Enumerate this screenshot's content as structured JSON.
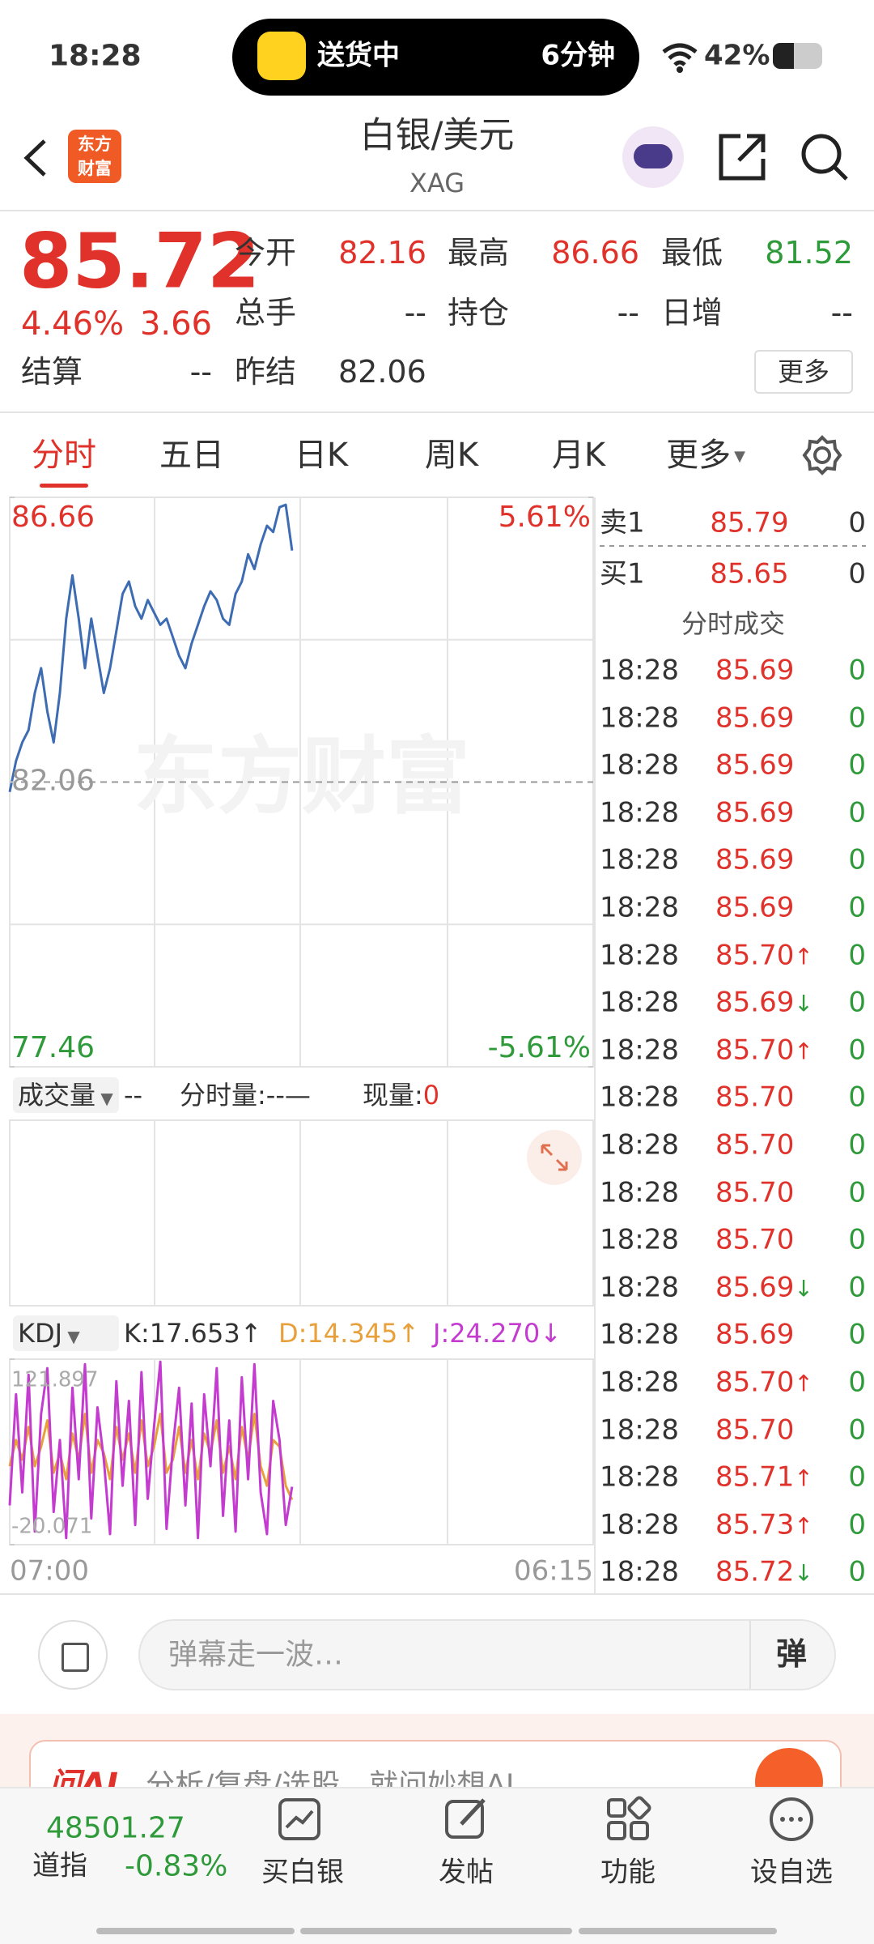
{
  "status_bar": {
    "time": "18:28",
    "activity": "送货中",
    "eta": "6分钟",
    "battery": "42%"
  },
  "header": {
    "logo": [
      "东方",
      "财富"
    ],
    "title": "白银/美元",
    "code": "XAG"
  },
  "quote": {
    "price": "85.72",
    "change_pct": "4.46%",
    "change": "3.66",
    "fields": [
      {
        "label": "今开",
        "value": "82.16",
        "color": "#e0322b"
      },
      {
        "label": "最高",
        "value": "86.66",
        "color": "#e0322b"
      },
      {
        "label": "最低",
        "value": "81.52",
        "color": "#2e9a3a"
      },
      {
        "label": "总手",
        "value": "--",
        "color": "#333333"
      },
      {
        "label": "持仓",
        "value": "--",
        "color": "#333333"
      },
      {
        "label": "日增",
        "value": "--",
        "color": "#333333"
      }
    ],
    "settle_label": "结算",
    "settle": "--",
    "prev_label": "昨结",
    "prev": "82.06",
    "more": "更多"
  },
  "tabs": [
    "分时",
    "五日",
    "日K",
    "周K",
    "月K",
    "更多"
  ],
  "watermark": "东方财富",
  "volume_bar": {
    "selector": "成交量",
    "value": "--",
    "period_label": "分时量:--—",
    "now_label": "现量:",
    "now": "0"
  },
  "kdj_bar": {
    "selector": "KDJ",
    "k": "K:17.653↑",
    "d": "D:14.345↑",
    "j": "J:24.270↓"
  },
  "chart_data": [
    {
      "type": "line",
      "categories": [
        "07:00",
        null,
        null,
        null,
        null,
        null,
        null,
        null,
        null,
        null,
        null,
        null,
        null,
        null,
        null,
        null,
        null,
        null,
        null,
        null,
        null,
        null,
        null,
        null,
        null,
        null,
        null,
        null,
        null,
        null,
        null,
        null,
        null,
        null,
        null,
        null,
        null,
        null,
        null,
        null,
        null,
        null,
        null,
        null,
        null,
        null,
        null,
        null,
        null,
        null,
        null,
        null,
        null,
        null,
        null,
        null,
        null,
        null,
        null,
        null,
        null,
        null,
        null,
        null,
        null,
        null,
        null,
        null,
        null,
        null,
        null,
        null,
        null,
        null,
        null,
        null,
        null,
        null,
        null,
        null,
        null,
        null,
        null,
        null,
        null,
        null,
        null,
        null,
        null,
        null,
        null,
        null,
        null,
        "06:15"
      ],
      "series": [
        {
          "color": "#3d6cb3",
          "values": [
            81.9,
            82.4,
            82.7,
            82.9,
            83.5,
            83.9,
            83.2,
            82.7,
            83.5,
            84.7,
            85.4,
            84.7,
            83.9,
            84.7,
            84.1,
            83.5,
            83.9,
            84.5,
            85.1,
            85.3,
            84.9,
            84.7,
            85.0,
            84.8,
            84.6,
            84.7,
            84.4,
            84.1,
            83.9,
            84.3,
            84.6,
            84.9,
            85.14,
            85.0,
            84.7,
            84.6,
            85.1,
            85.3,
            85.74,
            85.5,
            85.9,
            86.2,
            86.1,
            86.5,
            86.54,
            85.8,
            null,
            null,
            null,
            null,
            null,
            null,
            null,
            null,
            null,
            null,
            null,
            null,
            null,
            null,
            null,
            null,
            null,
            null,
            null,
            null,
            null,
            null,
            null,
            null,
            null,
            null,
            null,
            null,
            null,
            null,
            null,
            null,
            null,
            null,
            null,
            null,
            null,
            null,
            null,
            null,
            null,
            null,
            null,
            null,
            null,
            null,
            null,
            null
          ]
        }
      ],
      "ylim": [
        77.46,
        86.66
      ],
      "yticks": [
        77.46,
        82.06,
        86.66
      ],
      "ytick_colors": [
        "#2e9a3a",
        "#999999",
        "#e0322b"
      ],
      "y2lim": [
        -5.61,
        5.61
      ],
      "y2ticks": [
        {
          "value": -5.61,
          "label": "-5.61%"
        },
        {
          "value": 5.61,
          "label": "5.61%"
        }
      ],
      "y2tick_colors": [
        "#2e9a3a",
        "#e0322b"
      ],
      "baseline": 82.06,
      "grid_lines": [
        79.76,
        84.36
      ],
      "grid": true
    },
    {
      "type": "line",
      "series": [
        {
          "color": "#e8a03a",
          "values": [
            40,
            60,
            45,
            70,
            40,
            55,
            75,
            35,
            50,
            30,
            65,
            45,
            80,
            35,
            60,
            50,
            30,
            70,
            45,
            65,
            35,
            75,
            40,
            55,
            80,
            35,
            45,
            70,
            35,
            60,
            30,
            65,
            50,
            75,
            35,
            55,
            30,
            70,
            45,
            80,
            40,
            25,
            60,
            55,
            25,
            14.345,
            null,
            null,
            null,
            null,
            null,
            null,
            null,
            null,
            null,
            null,
            null,
            null,
            null,
            null,
            null,
            null,
            null,
            null,
            null,
            null,
            null,
            null,
            null,
            null,
            null,
            null,
            null,
            null,
            null,
            null,
            null,
            null,
            null,
            null,
            null,
            null,
            null,
            null,
            null,
            null,
            null,
            null,
            null,
            null,
            null,
            null,
            null,
            null
          ]
        },
        {
          "color": "#c43ccf",
          "values": [
            10,
            95,
            20,
            110,
            -10,
            80,
            115,
            5,
            60,
            -15,
            100,
            30,
            118,
            0,
            85,
            45,
            -12,
            105,
            25,
            90,
            -5,
            112,
            15,
            70,
            120,
            -8,
            55,
            100,
            10,
            88,
            -15,
            95,
            40,
            115,
            2,
            75,
            -10,
            108,
            30,
            118,
            20,
            -12,
            90,
            60,
            -5,
            24.27,
            null,
            null,
            null,
            null,
            null,
            null,
            null,
            null,
            null,
            null,
            null,
            null,
            null,
            null,
            null,
            null,
            null,
            null,
            null,
            null,
            null,
            null,
            null,
            null,
            null,
            null,
            null,
            null,
            null,
            null,
            null,
            null,
            null,
            null,
            null,
            null,
            null,
            null,
            null,
            null,
            null,
            null,
            null,
            null,
            null,
            null,
            null,
            null
          ]
        }
      ],
      "ylim": [
        -20.071,
        121.897
      ],
      "yticks": [
        -20.071,
        121.897
      ],
      "ytick_colors": [
        "#aaaaaa",
        "#aaaaaa"
      ]
    }
  ],
  "order_book": [
    {
      "label": "卖1",
      "price": "85.79",
      "volume": "0"
    },
    {
      "label": "买1",
      "price": "85.65",
      "volume": "0"
    }
  ],
  "trades_title": "分时成交",
  "trades": [
    {
      "time": "18:28",
      "price": "85.69",
      "volume": "0"
    },
    {
      "time": "18:28",
      "price": "85.69",
      "volume": "0"
    },
    {
      "time": "18:28",
      "price": "85.69",
      "volume": "0"
    },
    {
      "time": "18:28",
      "price": "85.69",
      "volume": "0"
    },
    {
      "time": "18:28",
      "price": "85.69",
      "volume": "0"
    },
    {
      "time": "18:28",
      "price": "85.69",
      "volume": "0"
    },
    {
      "time": "18:28",
      "price": "85.70",
      "arrow": "↑",
      "arrow_color": "#e0322b",
      "volume": "0"
    },
    {
      "time": "18:28",
      "price": "85.69",
      "arrow": "↓",
      "arrow_color": "#2e9a3a",
      "volume": "0"
    },
    {
      "time": "18:28",
      "price": "85.70",
      "arrow": "↑",
      "arrow_color": "#e0322b",
      "volume": "0"
    },
    {
      "time": "18:28",
      "price": "85.70",
      "volume": "0"
    },
    {
      "time": "18:28",
      "price": "85.70",
      "volume": "0"
    },
    {
      "time": "18:28",
      "price": "85.70",
      "volume": "0"
    },
    {
      "time": "18:28",
      "price": "85.70",
      "volume": "0"
    },
    {
      "time": "18:28",
      "price": "85.69",
      "arrow": "↓",
      "arrow_color": "#2e9a3a",
      "volume": "0"
    },
    {
      "time": "18:28",
      "price": "85.69",
      "volume": "0"
    },
    {
      "time": "18:28",
      "price": "85.70",
      "arrow": "↑",
      "arrow_color": "#e0322b",
      "volume": "0"
    },
    {
      "time": "18:28",
      "price": "85.70",
      "volume": "0"
    },
    {
      "time": "18:28",
      "price": "85.71",
      "arrow": "↑",
      "arrow_color": "#e0322b",
      "volume": "0"
    },
    {
      "time": "18:28",
      "price": "85.73",
      "arrow": "↑",
      "arrow_color": "#e0322b",
      "volume": "0"
    },
    {
      "time": "18:28",
      "price": "85.72",
      "arrow": "↓",
      "arrow_color": "#2e9a3a",
      "volume": "0"
    }
  ],
  "comment": {
    "placeholder": "弹幕走一波…",
    "send": "弹"
  },
  "banner": {
    "logo": "问AI",
    "text": "分析/复盘/选股，就问妙想AI"
  },
  "bottom_nav": {
    "index_value": "48501.27",
    "index_name": "道指",
    "index_change": "-0.83%",
    "items": [
      "买白银",
      "发帖",
      "功能",
      "设自选"
    ]
  }
}
